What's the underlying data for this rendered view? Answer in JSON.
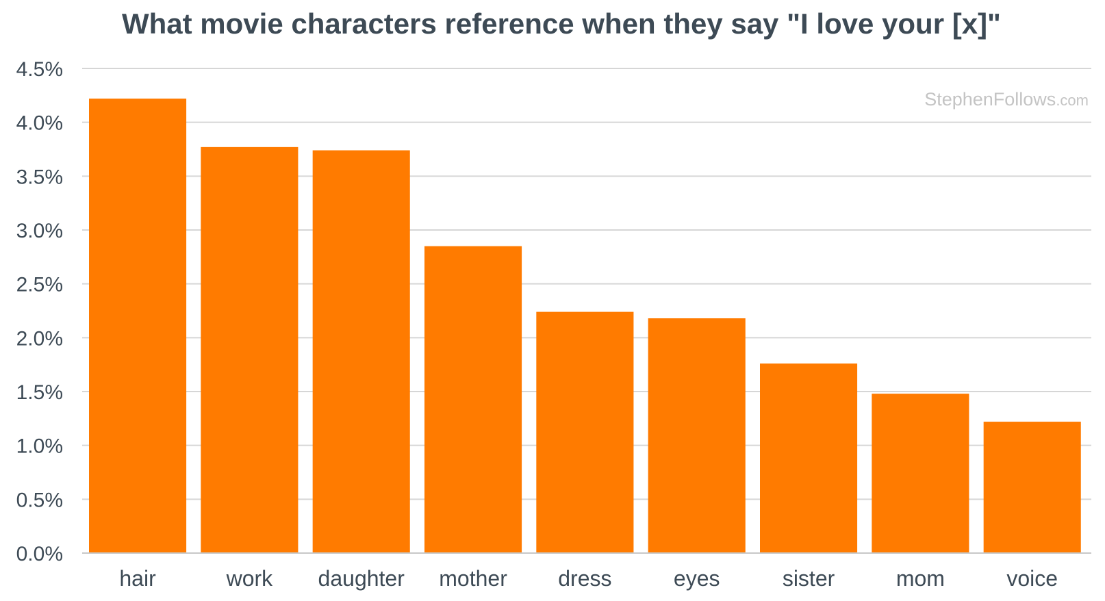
{
  "chart_data": {
    "type": "bar",
    "title": "What movie characters reference when they say \"I love your [x]\"",
    "xlabel": "",
    "ylabel": "",
    "categories": [
      "hair",
      "work",
      "daughter",
      "mother",
      "dress",
      "eyes",
      "sister",
      "mom",
      "voice"
    ],
    "values": [
      4.22,
      3.77,
      3.74,
      2.85,
      2.24,
      2.18,
      1.76,
      1.48,
      1.22
    ],
    "ylim": [
      0,
      4.5
    ],
    "yticks": [
      0,
      0.5,
      1.0,
      1.5,
      2.0,
      2.5,
      3.0,
      3.5,
      4.0,
      4.5
    ],
    "ytick_labels": [
      "0.0%",
      "0.5%",
      "1.0%",
      "1.5%",
      "2.0%",
      "2.5%",
      "3.0%",
      "3.5%",
      "4.0%",
      "4.5%"
    ],
    "grid": true,
    "legend": "none",
    "bar_color": "#ff7b00",
    "watermark": {
      "main": "StephenFollows",
      "tld": ".com"
    }
  },
  "colors": {
    "text": "#3d4a55",
    "grid": "#d6d6d6",
    "watermark": "#c4c4c4",
    "background": "#ffffff"
  }
}
